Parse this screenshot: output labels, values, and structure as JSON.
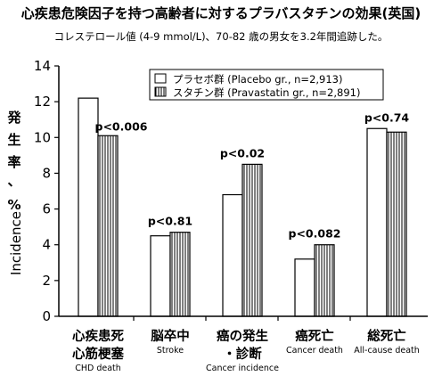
{
  "header": {
    "title": "心疾患危険因子を持つ高齢者に対するプラバスタチンの効果(英国)",
    "subtitle": "コレステロール値 (4-9 mmol/L)、70-82 歳の男女を3.2年間追跡した。"
  },
  "axis": {
    "ylabel_ja": [
      "発",
      "生",
      "率",
      "、",
      "%"
    ],
    "ylabel_en": "Incidence"
  },
  "colors": {
    "placebo_fill": "#ffffff",
    "pravastatin_fill": "#ffffff",
    "pravastatin_hatch": "#000000",
    "axis": "#000000"
  },
  "chart_data": {
    "type": "bar",
    "categories": [
      {
        "ja": "心疾患死\n心筋梗塞",
        "en": "CHD death"
      },
      {
        "ja": "脳卒中",
        "en": "Stroke"
      },
      {
        "ja": "癌の発生\n・診断",
        "en": "Cancer incidence"
      },
      {
        "ja": "癌死亡",
        "en": "Cancer death"
      },
      {
        "ja": "総死亡",
        "en": "All-cause death"
      }
    ],
    "series": [
      {
        "name": "プラセボ群 (Placebo gr., n=2,913)",
        "values": [
          12.2,
          4.5,
          6.8,
          3.2,
          10.5
        ],
        "pattern": "solid"
      },
      {
        "name": "スタチン群 (Pravastatin gr., n=2,891)",
        "values": [
          10.1,
          4.7,
          8.5,
          4.0,
          10.3
        ],
        "pattern": "vertical-hatch"
      }
    ],
    "annotations": [
      "p<0.006",
      "p<0.81",
      "p<0.02",
      "p<0.082",
      "p<0.74"
    ],
    "yticks": [
      0,
      2,
      4,
      6,
      8,
      10,
      12,
      14
    ],
    "ylim": [
      0,
      14
    ],
    "legend_position": "top-right",
    "grid": false
  }
}
